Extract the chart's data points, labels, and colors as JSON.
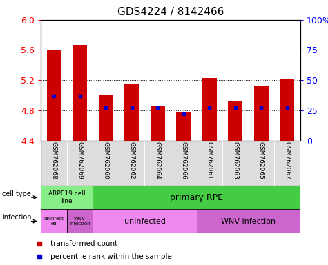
{
  "title": "GDS4224 / 8142466",
  "samples": [
    "GSM762068",
    "GSM762069",
    "GSM762060",
    "GSM762062",
    "GSM762064",
    "GSM762066",
    "GSM762061",
    "GSM762063",
    "GSM762065",
    "GSM762067"
  ],
  "bar_bottom": 4.4,
  "transformed_count": [
    5.6,
    5.67,
    5.0,
    5.15,
    4.85,
    4.77,
    5.23,
    4.92,
    5.13,
    5.21
  ],
  "percentile_rank": [
    37,
    37,
    27,
    27,
    27,
    22,
    27,
    27,
    27,
    27
  ],
  "ylim": [
    4.4,
    6.0
  ],
  "yticks_left": [
    4.4,
    4.8,
    5.2,
    5.6,
    6.0
  ],
  "yticks_right": [
    0,
    25,
    50,
    75,
    100
  ],
  "bar_color": "#cc0000",
  "dot_color": "#0000cc",
  "bg_color": "#ffffff",
  "tick_area_bg": "#dddddd",
  "cell_type_color_1": "#88ee88",
  "cell_type_color_2": "#44cc44",
  "inf_color_light": "#ee88ee",
  "inf_color_dark": "#cc66cc",
  "title_fontsize": 11,
  "tick_fontsize": 9,
  "ann_fontsize": 8,
  "sample_fontsize": 6.5
}
